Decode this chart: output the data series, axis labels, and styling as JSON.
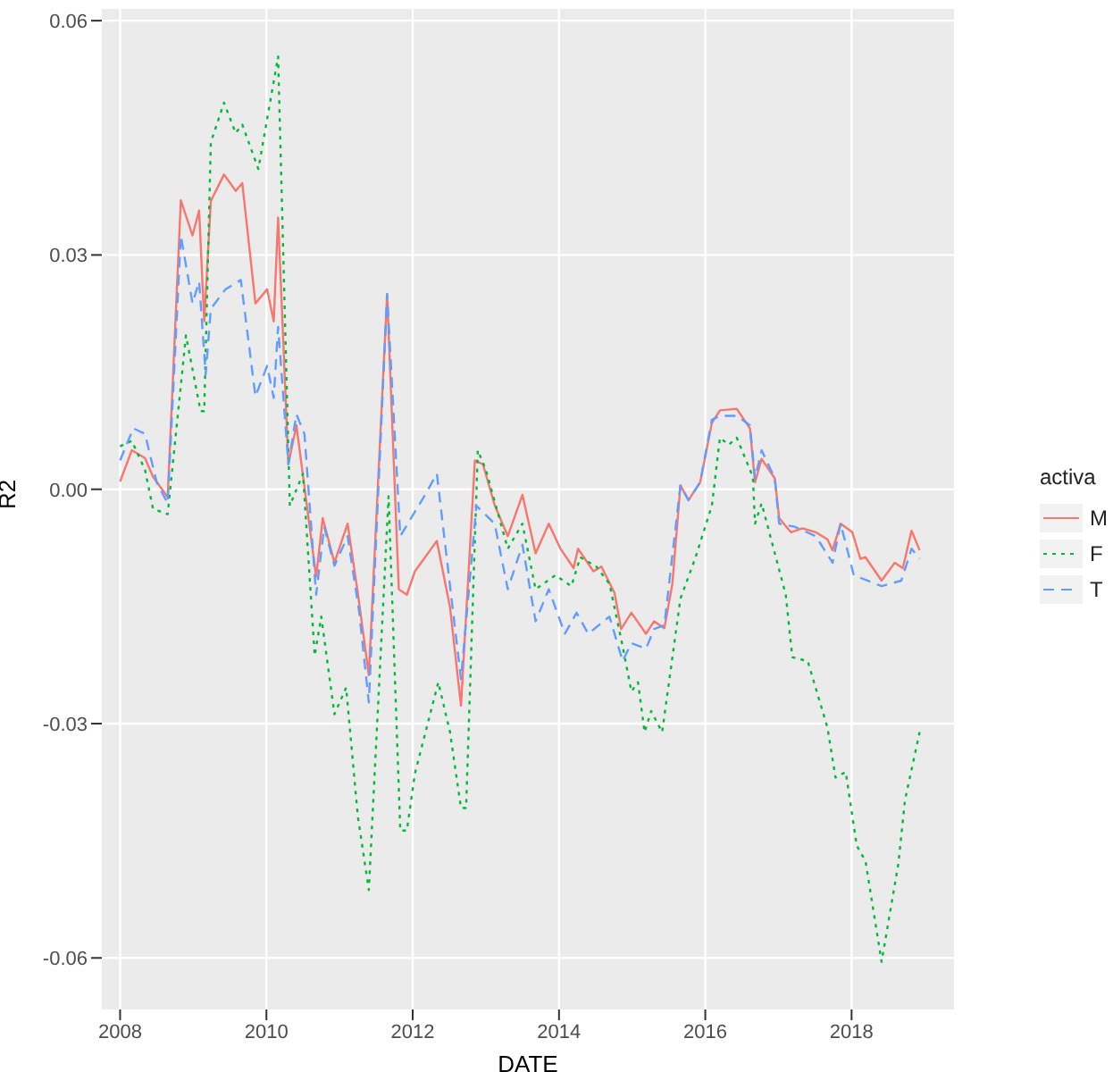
{
  "chart_data": {
    "type": "line",
    "xlabel": "DATE",
    "ylabel": "R2",
    "legend_title": "activa",
    "legend": "right",
    "grid": true,
    "xlim": [
      2007.75,
      2019.4
    ],
    "xticks": [
      2008,
      2010,
      2012,
      2014,
      2016,
      2018
    ],
    "ylim": [
      -0.0666,
      0.0615
    ],
    "yticks": [
      {
        "value": -0.06,
        "label": "-0.06"
      },
      {
        "value": -0.03,
        "label": "-0.03"
      },
      {
        "value": 0,
        "label": "0.00"
      },
      {
        "value": 0.03,
        "label": "0.03"
      },
      {
        "value": 0.06,
        "label": "0.06"
      }
    ],
    "series": [
      {
        "name": "M",
        "color": "#f8766d",
        "line_style": "solid",
        "x": [
          2008.0,
          2008.16,
          2008.34,
          2008.45,
          2008.65,
          2008.83,
          2008.99,
          2009.08,
          2009.15,
          2009.24,
          2009.42,
          2009.58,
          2009.67,
          2009.85,
          2010.01,
          2010.1,
          2010.16,
          2010.3,
          2010.41,
          2010.68,
          2010.77,
          2010.93,
          2011.11,
          2011.25,
          2011.4,
          2011.65,
          2011.81,
          2011.92,
          2012.03,
          2012.17,
          2012.33,
          2012.51,
          2012.66,
          2012.85,
          2012.96,
          2013.12,
          2013.3,
          2013.5,
          2013.68,
          2013.86,
          2014.02,
          2014.2,
          2014.26,
          2014.47,
          2014.58,
          2014.76,
          2014.85,
          2014.99,
          2015.19,
          2015.3,
          2015.44,
          2015.55,
          2015.66,
          2015.77,
          2015.93,
          2016.09,
          2016.2,
          2016.43,
          2016.61,
          2016.68,
          2016.77,
          2016.95,
          2017.01,
          2017.17,
          2017.33,
          2017.51,
          2017.67,
          2017.74,
          2017.85,
          2018.01,
          2018.12,
          2018.19,
          2018.41,
          2018.59,
          2018.7,
          2018.82,
          2018.93
        ],
        "values": [
          0.001,
          0.005,
          0.004,
          0.0016,
          -0.001,
          0.037,
          0.0325,
          0.0357,
          0.0215,
          0.0369,
          0.0403,
          0.0382,
          0.0392,
          0.0238,
          0.0256,
          0.0215,
          0.0348,
          0.0032,
          0.0082,
          -0.0112,
          -0.0037,
          -0.0094,
          -0.0044,
          -0.0133,
          -0.0238,
          0.025,
          -0.0128,
          -0.0135,
          -0.0105,
          -0.0087,
          -0.0066,
          -0.0151,
          -0.0277,
          0.0037,
          0.0032,
          -0.002,
          -0.006,
          -0.0007,
          -0.0082,
          -0.0044,
          -0.0076,
          -0.0101,
          -0.0076,
          -0.0105,
          -0.0099,
          -0.0133,
          -0.0179,
          -0.0158,
          -0.0185,
          -0.0169,
          -0.0178,
          -0.0121,
          0.0005,
          -0.0014,
          0.0009,
          0.0085,
          0.0101,
          0.0103,
          0.0078,
          0.0009,
          0.0039,
          0.0014,
          -0.0037,
          -0.0055,
          -0.005,
          -0.0055,
          -0.0064,
          -0.0078,
          -0.0044,
          -0.0055,
          -0.0089,
          -0.0087,
          -0.0117,
          -0.0094,
          -0.0101,
          -0.0053,
          -0.0078
        ]
      },
      {
        "name": "F",
        "color": "#00ba38",
        "line_style": "dotted",
        "x": [
          2008.0,
          2008.16,
          2008.34,
          2008.45,
          2008.65,
          2008.9,
          2009.1,
          2009.15,
          2009.24,
          2009.42,
          2009.58,
          2009.67,
          2009.89,
          2010.16,
          2010.32,
          2010.5,
          2010.66,
          2010.75,
          2010.93,
          2011.09,
          2011.25,
          2011.4,
          2011.67,
          2011.83,
          2011.92,
          2012.03,
          2012.35,
          2012.51,
          2012.66,
          2012.73,
          2012.89,
          2013.0,
          2013.3,
          2013.5,
          2013.68,
          2013.95,
          2014.17,
          2014.29,
          2014.51,
          2014.69,
          2014.87,
          2014.99,
          2015.08,
          2015.17,
          2015.26,
          2015.41,
          2015.66,
          2015.86,
          2016.09,
          2016.2,
          2016.32,
          2016.43,
          2016.65,
          2016.68,
          2016.77,
          2017.1,
          2017.19,
          2017.4,
          2017.67,
          2017.78,
          2017.92,
          2018.07,
          2018.19,
          2018.41,
          2018.64,
          2018.73,
          2018.93
        ],
        "values": [
          0.0055,
          0.0062,
          0.0025,
          -0.0025,
          -0.0032,
          0.0197,
          0.01,
          0.01,
          0.0444,
          0.0495,
          0.0456,
          0.0467,
          0.041,
          0.0554,
          -0.0021,
          0.002,
          -0.0213,
          -0.0163,
          -0.0288,
          -0.0254,
          -0.0419,
          -0.0513,
          -0.0009,
          -0.0437,
          -0.0437,
          -0.0364,
          -0.0247,
          -0.0311,
          -0.0408,
          -0.0408,
          0.005,
          0.0025,
          -0.0076,
          -0.0044,
          -0.0128,
          -0.011,
          -0.0124,
          -0.0087,
          -0.0099,
          -0.0121,
          -0.0201,
          -0.0259,
          -0.0247,
          -0.0311,
          -0.0284,
          -0.0311,
          -0.014,
          -0.0089,
          -0.0021,
          0.0066,
          0.0057,
          0.0066,
          0.0016,
          -0.0044,
          -0.0018,
          -0.0135,
          -0.0215,
          -0.022,
          -0.0305,
          -0.0369,
          -0.0362,
          -0.0456,
          -0.0476,
          -0.0605,
          -0.0479,
          -0.0398,
          -0.0311
        ]
      },
      {
        "name": "T",
        "color": "#619cff",
        "line_style": "dashed",
        "x": [
          2008.0,
          2008.18,
          2008.34,
          2008.5,
          2008.65,
          2008.83,
          2008.99,
          2009.08,
          2009.17,
          2009.24,
          2009.44,
          2009.65,
          2009.85,
          2010.01,
          2010.1,
          2010.16,
          2010.3,
          2010.41,
          2010.52,
          2010.68,
          2010.79,
          2010.93,
          2011.11,
          2011.27,
          2011.4,
          2011.65,
          2011.83,
          2012.17,
          2012.33,
          2012.66,
          2012.87,
          2013.12,
          2013.3,
          2013.5,
          2013.68,
          2013.86,
          2014.08,
          2014.24,
          2014.4,
          2014.69,
          2014.87,
          2014.99,
          2015.19,
          2015.3,
          2015.44,
          2015.66,
          2015.77,
          2015.93,
          2016.09,
          2016.2,
          2016.43,
          2016.61,
          2016.68,
          2016.77,
          2016.95,
          2017.01,
          2017.22,
          2017.51,
          2017.74,
          2017.85,
          2018.03,
          2018.41,
          2018.68,
          2018.82,
          2018.93
        ],
        "values": [
          0.0037,
          0.0078,
          0.0071,
          0.0009,
          -0.0018,
          0.0325,
          0.0238,
          0.0266,
          0.0147,
          0.0231,
          0.0256,
          0.0268,
          0.0119,
          0.0158,
          0.0117,
          0.0208,
          0.0032,
          0.0096,
          0.0071,
          -0.0135,
          -0.0048,
          -0.0098,
          -0.006,
          -0.0158,
          -0.0273,
          0.025,
          -0.006,
          -0.0007,
          0.002,
          -0.0243,
          -0.0021,
          -0.0044,
          -0.0128,
          -0.0071,
          -0.0169,
          -0.0128,
          -0.0185,
          -0.0158,
          -0.0185,
          -0.0163,
          -0.022,
          -0.0197,
          -0.0204,
          -0.0179,
          -0.0174,
          0.0005,
          -0.0014,
          0.0009,
          0.0089,
          0.0094,
          0.0094,
          0.0082,
          0.0014,
          0.005,
          0.0014,
          -0.0044,
          -0.0048,
          -0.006,
          -0.0094,
          -0.0044,
          -0.011,
          -0.0124,
          -0.0117,
          -0.0076,
          -0.0089
        ]
      }
    ]
  }
}
